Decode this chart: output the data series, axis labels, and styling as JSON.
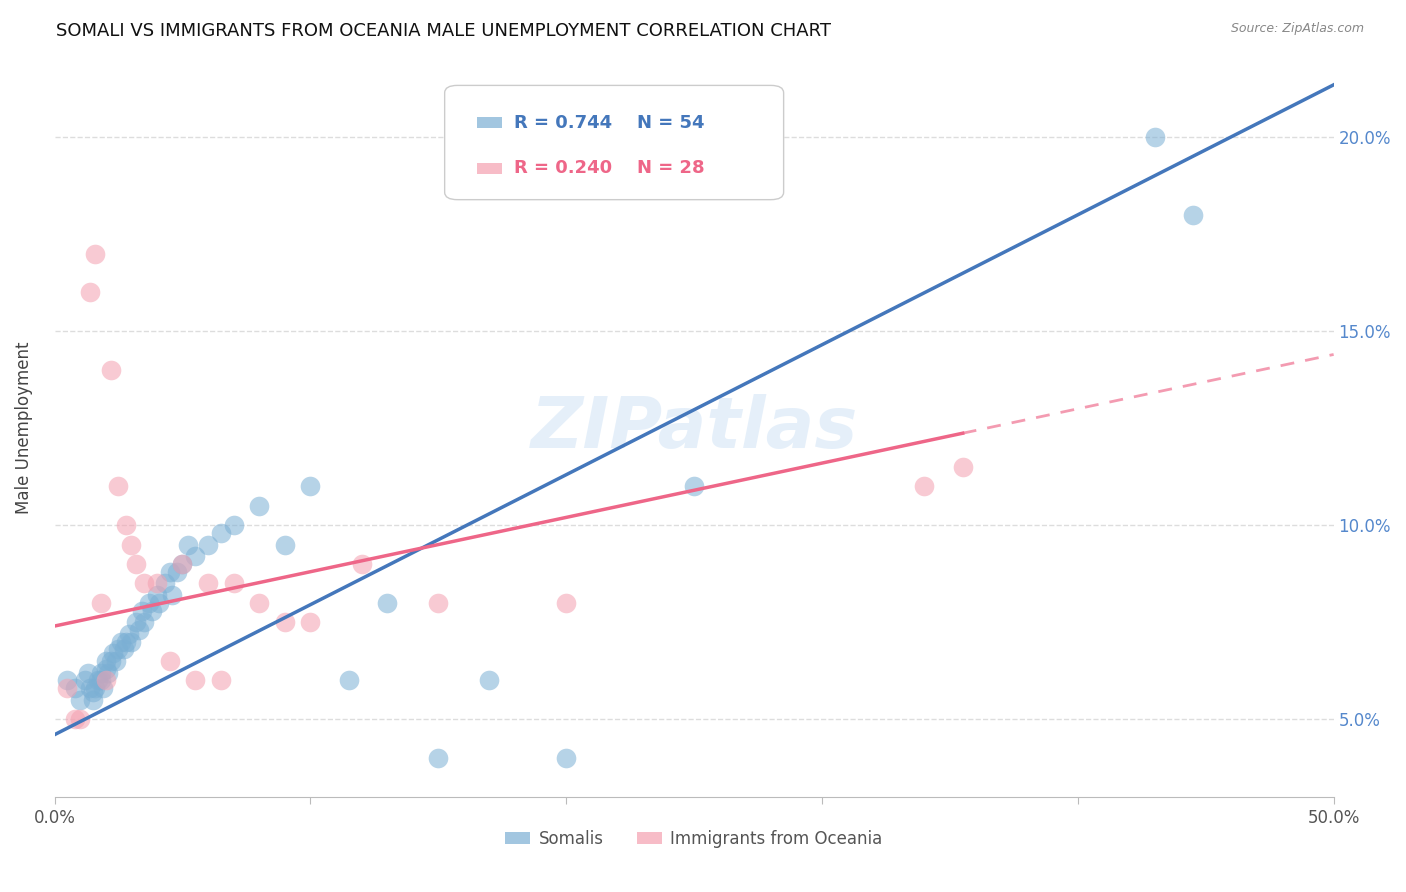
{
  "title": "SOMALI VS IMMIGRANTS FROM OCEANIA MALE UNEMPLOYMENT CORRELATION CHART",
  "source": "Source: ZipAtlas.com",
  "ylabel": "Male Unemployment",
  "xlim": [
    0.0,
    0.5
  ],
  "ylim": [
    0.03,
    0.22
  ],
  "label_somalis": "Somalis",
  "label_oceania": "Immigrants from Oceania",
  "watermark": "ZIPatlas",
  "blue_color": "#7BAFD4",
  "pink_color": "#F4A0B0",
  "blue_line_color": "#4477BB",
  "pink_line_color": "#EE6688",
  "somali_x": [
    0.005,
    0.008,
    0.01,
    0.012,
    0.013,
    0.014,
    0.015,
    0.015,
    0.016,
    0.017,
    0.018,
    0.018,
    0.019,
    0.02,
    0.02,
    0.021,
    0.022,
    0.023,
    0.024,
    0.025,
    0.026,
    0.027,
    0.028,
    0.029,
    0.03,
    0.032,
    0.033,
    0.034,
    0.035,
    0.037,
    0.038,
    0.04,
    0.041,
    0.043,
    0.045,
    0.046,
    0.048,
    0.05,
    0.052,
    0.055,
    0.06,
    0.065,
    0.07,
    0.08,
    0.09,
    0.1,
    0.115,
    0.13,
    0.15,
    0.17,
    0.2,
    0.25,
    0.43,
    0.445
  ],
  "somali_y": [
    0.06,
    0.058,
    0.055,
    0.06,
    0.062,
    0.058,
    0.057,
    0.055,
    0.058,
    0.06,
    0.062,
    0.06,
    0.058,
    0.065,
    0.063,
    0.062,
    0.065,
    0.067,
    0.065,
    0.068,
    0.07,
    0.068,
    0.07,
    0.072,
    0.07,
    0.075,
    0.073,
    0.078,
    0.075,
    0.08,
    0.078,
    0.082,
    0.08,
    0.085,
    0.088,
    0.082,
    0.088,
    0.09,
    0.095,
    0.092,
    0.095,
    0.098,
    0.1,
    0.105,
    0.095,
    0.11,
    0.06,
    0.08,
    0.04,
    0.06,
    0.04,
    0.11,
    0.2,
    0.18
  ],
  "oceania_x": [
    0.005,
    0.008,
    0.01,
    0.014,
    0.016,
    0.018,
    0.02,
    0.022,
    0.025,
    0.028,
    0.03,
    0.032,
    0.035,
    0.04,
    0.045,
    0.05,
    0.055,
    0.06,
    0.065,
    0.07,
    0.08,
    0.09,
    0.1,
    0.12,
    0.15,
    0.2,
    0.34,
    0.355
  ],
  "oceania_y": [
    0.058,
    0.05,
    0.05,
    0.16,
    0.17,
    0.08,
    0.06,
    0.14,
    0.11,
    0.1,
    0.095,
    0.09,
    0.085,
    0.085,
    0.065,
    0.09,
    0.06,
    0.085,
    0.06,
    0.085,
    0.08,
    0.075,
    0.075,
    0.09,
    0.08,
    0.08,
    0.11,
    0.115
  ],
  "blue_r": "R = 0.744",
  "blue_n": "N = 54",
  "pink_r": "R = 0.240",
  "pink_n": "N = 28",
  "background_color": "#FFFFFF",
  "grid_color": "#DDDDDD"
}
